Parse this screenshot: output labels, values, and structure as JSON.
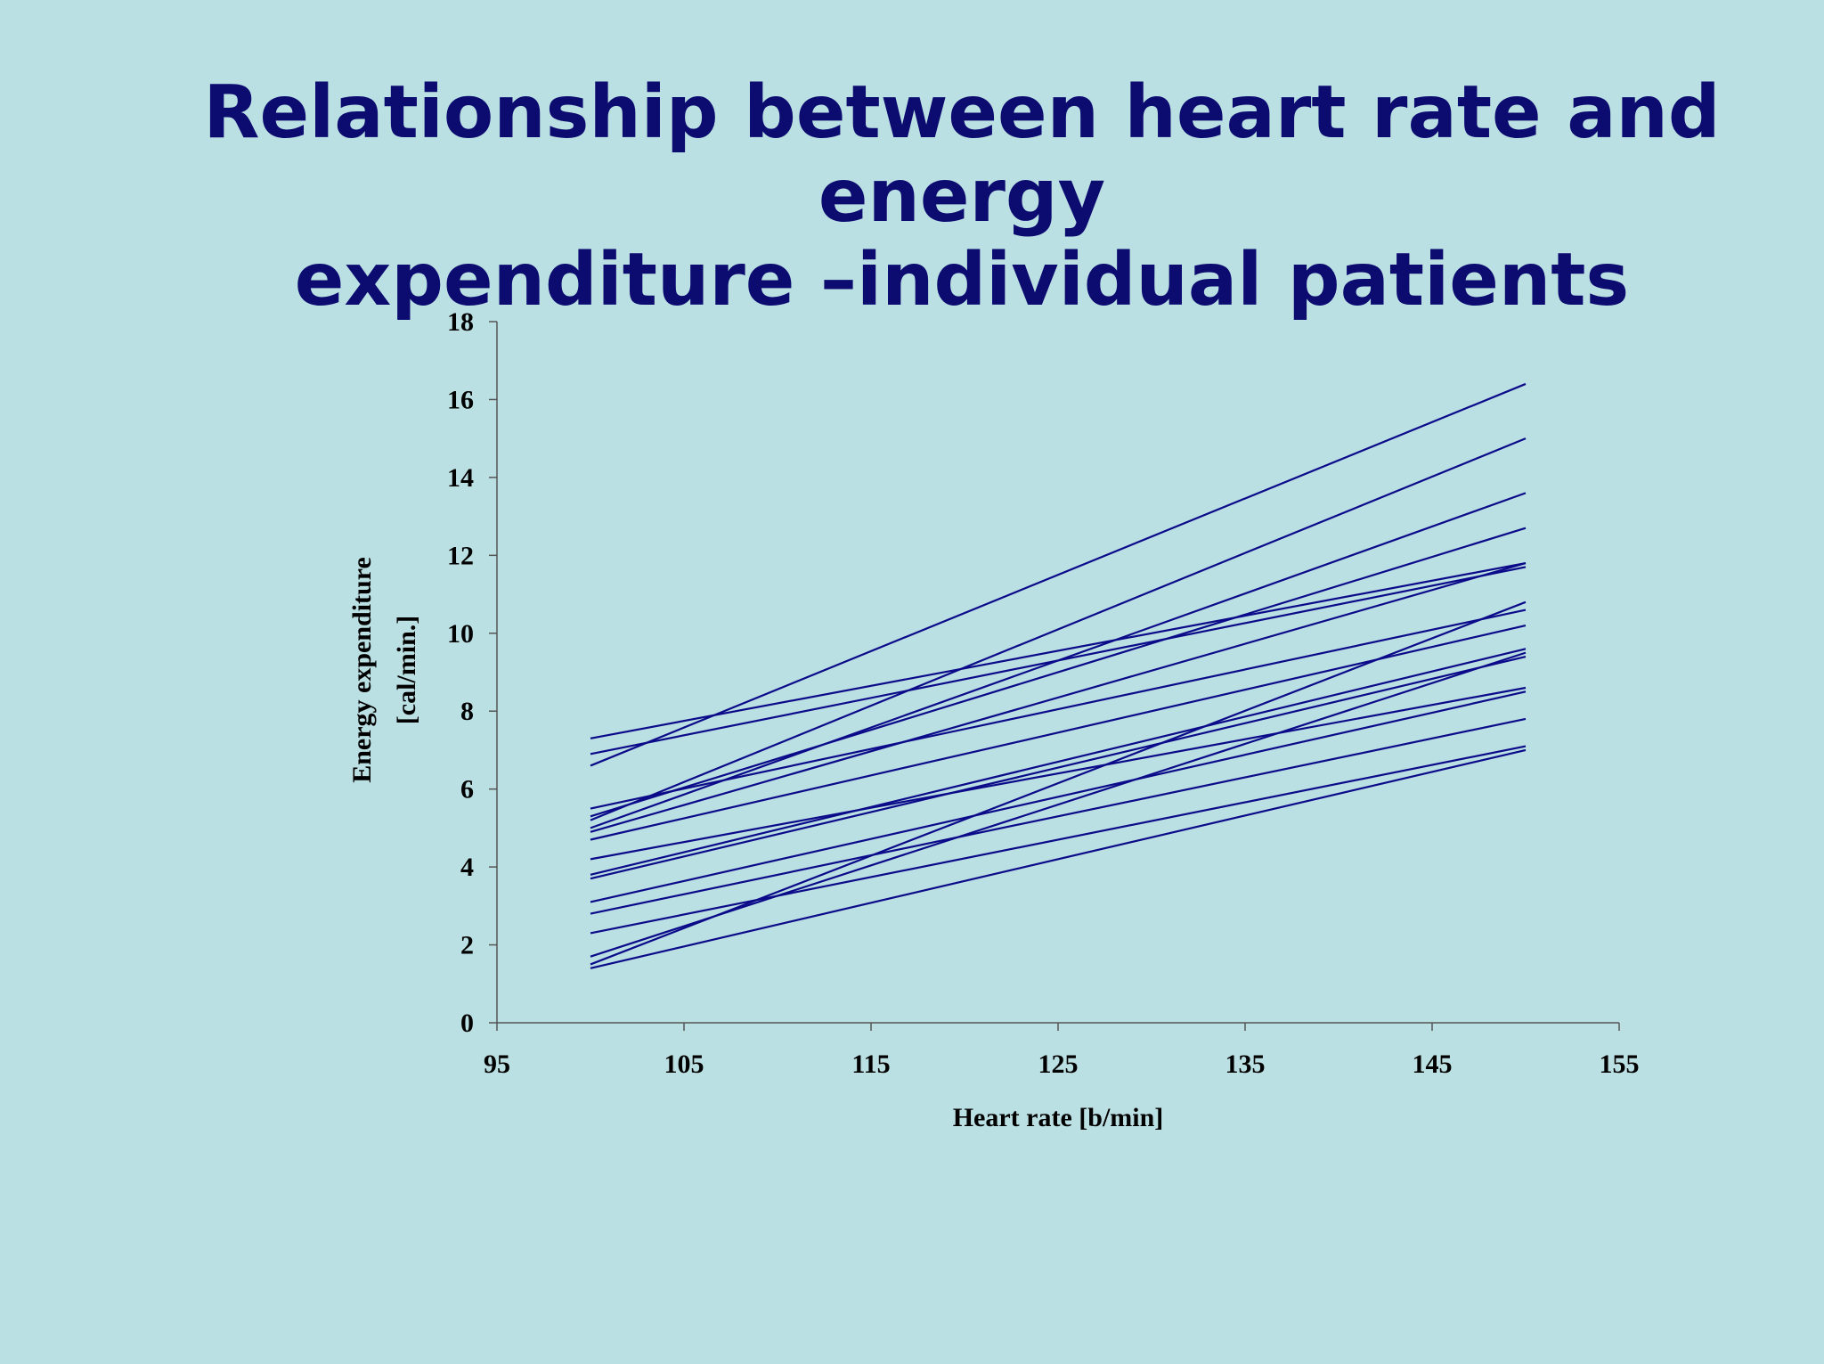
{
  "slide": {
    "title_line1": "Relationship between heart rate and energy",
    "title_line2": "expenditure –individual patients"
  },
  "colors": {
    "background": "#bbe0e3",
    "title": "#0b0b70",
    "series_line": "#0b0b8a",
    "axis": "#555555"
  },
  "chart_data": {
    "type": "line",
    "title": "",
    "xlabel": "Heart rate [b/min]",
    "ylabel_line1": "Energy expenditure",
    "ylabel_line2": "[cal/min.]",
    "xlim": [
      95,
      155
    ],
    "ylim": [
      0,
      18
    ],
    "xticks": [
      "95",
      "105",
      "115",
      "125",
      "135",
      "145",
      "155"
    ],
    "yticks": [
      "0",
      "2",
      "4",
      "6",
      "8",
      "10",
      "12",
      "14",
      "16",
      "18"
    ],
    "grid": false,
    "legend": "none",
    "x": [
      100,
      150
    ],
    "series": [
      {
        "values": [
          7.3,
          11.8
        ]
      },
      {
        "values": [
          6.9,
          11.7
        ]
      },
      {
        "values": [
          6.6,
          16.4
        ]
      },
      {
        "values": [
          5.5,
          10.6
        ]
      },
      {
        "values": [
          5.3,
          12.7
        ]
      },
      {
        "values": [
          5.2,
          15.0
        ]
      },
      {
        "values": [
          5.0,
          13.6
        ]
      },
      {
        "values": [
          4.9,
          11.8
        ]
      },
      {
        "values": [
          4.7,
          10.2
        ]
      },
      {
        "values": [
          4.2,
          8.6
        ]
      },
      {
        "values": [
          3.8,
          9.6
        ]
      },
      {
        "values": [
          3.7,
          9.4
        ]
      },
      {
        "values": [
          3.1,
          8.5
        ]
      },
      {
        "values": [
          2.8,
          7.8
        ]
      },
      {
        "values": [
          2.3,
          7.1
        ]
      },
      {
        "values": [
          1.7,
          9.5
        ]
      },
      {
        "values": [
          1.5,
          10.8
        ]
      },
      {
        "values": [
          1.4,
          7.0
        ]
      }
    ]
  }
}
